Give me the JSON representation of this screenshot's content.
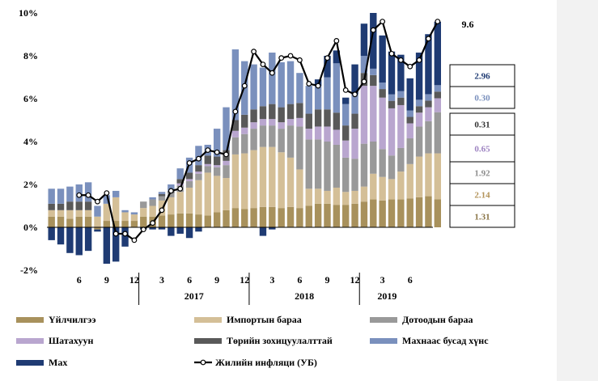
{
  "chart_data": {
    "type": "stacked-bar-line",
    "title": "",
    "ylabel": "",
    "xlabel": "",
    "ylim": [
      -2,
      10
    ],
    "y_ticks": [
      "-2%",
      "0%",
      "2%",
      "4%",
      "6%",
      "8%",
      "10%"
    ],
    "y_tick_values": [
      -2,
      0,
      2,
      4,
      6,
      8,
      10
    ],
    "month_ticks": [
      {
        "label": "6",
        "index": 3
      },
      {
        "label": "9",
        "index": 6
      },
      {
        "label": "12",
        "index": 9
      },
      {
        "label": "3",
        "index": 12
      },
      {
        "label": "6",
        "index": 15
      },
      {
        "label": "9",
        "index": 18
      },
      {
        "label": "12",
        "index": 21
      },
      {
        "label": "3",
        "index": 24
      },
      {
        "label": "6",
        "index": 27
      },
      {
        "label": "9",
        "index": 30
      },
      {
        "label": "12",
        "index": 33
      },
      {
        "label": "3",
        "index": 36
      },
      {
        "label": "6",
        "index": 39
      }
    ],
    "year_labels": [
      {
        "label": "2017",
        "from": 10,
        "to": 21
      },
      {
        "label": "2018",
        "from": 22,
        "to": 33
      },
      {
        "label": "2019",
        "from": 34,
        "to": 39
      }
    ],
    "year_separators": [
      9.5,
      21.5,
      33.5
    ],
    "series": [
      {
        "name": "Үйлчилгээ",
        "color": "#a8915c",
        "values": [
          0.5,
          0.5,
          0.4,
          0.5,
          0.5,
          -0.1,
          0.3,
          0.3,
          0.3,
          0.3,
          0.5,
          0.5,
          0.55,
          0.6,
          0.65,
          0.65,
          0.6,
          0.55,
          0.7,
          0.8,
          0.9,
          0.85,
          0.9,
          0.95,
          0.95,
          0.9,
          0.95,
          0.9,
          1.0,
          1.1,
          1.1,
          1.05,
          1.05,
          1.1,
          1.2,
          1.3,
          1.25,
          1.3,
          1.3,
          1.35,
          1.4,
          1.45,
          1.31
        ]
      },
      {
        "name": "Импортын бараа",
        "color": "#d4bf97",
        "values": [
          0.3,
          0.3,
          0.4,
          0.3,
          0.3,
          0.5,
          0.8,
          1.1,
          0.4,
          0.3,
          0.4,
          0.5,
          0.7,
          0.8,
          1.0,
          1.2,
          1.6,
          2.0,
          1.7,
          1.5,
          2.5,
          2.6,
          2.7,
          2.8,
          2.8,
          2.6,
          2.3,
          1.8,
          0.8,
          0.7,
          0.6,
          0.8,
          0.6,
          0.6,
          0.7,
          1.2,
          1.1,
          0.95,
          1.3,
          1.6,
          1.9,
          2.0,
          2.14
        ]
      },
      {
        "name": "Дотоодын бараа",
        "color": "#999999",
        "values": [
          0.0,
          0.0,
          0.0,
          0.0,
          0.0,
          0.0,
          0.0,
          0.0,
          0.0,
          0.0,
          0.3,
          0.3,
          0.2,
          0.2,
          0.3,
          0.3,
          0.3,
          0.3,
          0.4,
          0.6,
          0.8,
          0.9,
          1.0,
          1.0,
          1.0,
          1.1,
          1.5,
          2.0,
          2.3,
          2.3,
          2.3,
          2.0,
          1.6,
          1.5,
          2.0,
          1.5,
          1.3,
          1.1,
          1.1,
          1.2,
          1.4,
          1.5,
          1.92
        ]
      },
      {
        "name": "Шатахуун",
        "color": "#b9a6cf",
        "values": [
          0.0,
          0.0,
          0.0,
          0.0,
          0.0,
          0.0,
          0.0,
          0.0,
          0.0,
          0.0,
          0.0,
          0.0,
          0.0,
          0.0,
          0.1,
          0.1,
          0.1,
          0.1,
          0.1,
          0.2,
          0.3,
          0.3,
          0.3,
          0.3,
          0.3,
          0.3,
          0.3,
          0.4,
          0.5,
          0.6,
          0.7,
          0.7,
          0.8,
          1.4,
          2.7,
          2.6,
          2.4,
          2.2,
          2.0,
          0.7,
          0.65,
          0.65,
          0.65
        ]
      },
      {
        "name": "Төрийн зохицуулалттай",
        "color": "#595959",
        "values": [
          0.3,
          0.3,
          0.4,
          0.4,
          0.4,
          0.0,
          0.0,
          0.0,
          0.0,
          0.0,
          0.0,
          0.0,
          0.1,
          0.1,
          0.2,
          0.3,
          0.3,
          0.4,
          0.4,
          0.5,
          0.5,
          0.6,
          0.6,
          0.6,
          0.7,
          0.7,
          0.7,
          0.7,
          0.7,
          0.8,
          0.8,
          0.8,
          0.7,
          0.7,
          0.6,
          0.5,
          0.4,
          0.35,
          0.35,
          0.3,
          0.3,
          0.31,
          0.31
        ]
      },
      {
        "name": "Махнаас бусад хүнс",
        "color": "#7a90bd",
        "values": [
          0.7,
          0.7,
          0.7,
          0.8,
          0.9,
          0.5,
          0.4,
          0.3,
          0.1,
          0.1,
          0.0,
          0.1,
          0.1,
          0.3,
          0.5,
          0.7,
          0.9,
          0.5,
          1.3,
          2.0,
          3.3,
          2.5,
          2.1,
          1.8,
          2.4,
          2.1,
          2.0,
          1.4,
          1.3,
          1.1,
          1.5,
          2.3,
          1.0,
          0.9,
          0.8,
          0.3,
          0.3,
          0.3,
          0.3,
          0.3,
          0.3,
          0.3,
          0.3
        ]
      },
      {
        "name": "Мах",
        "color": "#1f3b73",
        "values": [
          -0.6,
          -0.8,
          -1.2,
          -1.3,
          -1.1,
          -0.1,
          -1.7,
          -1.6,
          -0.9,
          0.0,
          -0.1,
          -0.1,
          -0.1,
          -0.4,
          -0.3,
          -0.5,
          -0.2,
          0.0,
          0.0,
          0.0,
          0.0,
          0.0,
          0.0,
          -0.4,
          -0.1,
          0.0,
          0.0,
          0.0,
          0.0,
          0.3,
          1.0,
          0.6,
          0.3,
          1.4,
          1.5,
          2.6,
          2.2,
          2.0,
          1.7,
          1.5,
          2.2,
          2.8,
          2.96
        ]
      }
    ],
    "line_series": {
      "name": "Жилийн инфляци (УБ)",
      "color": "#000000",
      "values": [
        1.5,
        1.5,
        1.2,
        1.6,
        -0.3,
        -0.3,
        -0.6,
        -0.1,
        0.2,
        0.8,
        1.7,
        1.8,
        3.0,
        3.2,
        3.6,
        3.5,
        3.4,
        5.4,
        6.6,
        8.2,
        7.6,
        7.2,
        7.9,
        8.0,
        7.8,
        6.7,
        6.6,
        7.9,
        8.7,
        6.4,
        6.2,
        6.8,
        9.2,
        9.6,
        8.1,
        7.8,
        7.5,
        7.8,
        8.8,
        9.6
      ]
    },
    "line_start_index": 3,
    "end_label": "9.6",
    "breakdown": [
      {
        "label": "2.96",
        "color": "#1f3b73"
      },
      {
        "label": "0.30",
        "color": "#7a90bd"
      },
      {
        "label": "0.31",
        "color": "#333333"
      },
      {
        "label": "0.65",
        "color": "#9e84c2"
      },
      {
        "label": "1.92",
        "color": "#8c8c8c"
      },
      {
        "label": "2.14",
        "color": "#b39359"
      },
      {
        "label": "1.31",
        "color": "#8a7446"
      }
    ]
  }
}
